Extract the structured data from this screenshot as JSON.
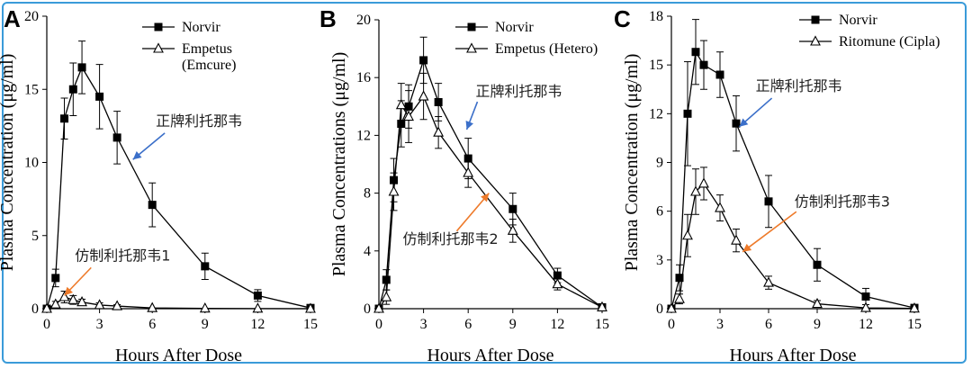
{
  "chart_data": [
    {
      "panel": "A",
      "type": "line",
      "xlabel": "Hours After Dose",
      "ylabel": "Plasma Concentration (μg/ml)",
      "xlim": [
        0,
        15
      ],
      "ylim": [
        0,
        20
      ],
      "xticks": [
        0,
        3,
        6,
        9,
        12,
        15
      ],
      "yticks": [
        0,
        5,
        10,
        15,
        20
      ],
      "legend_position": "top-right",
      "series": [
        {
          "name": "Norvir",
          "marker": "square",
          "x": [
            0,
            0.5,
            1,
            1.5,
            2,
            3,
            4,
            6,
            9,
            12,
            15
          ],
          "y": [
            0,
            2.1,
            13.0,
            15.0,
            16.5,
            14.5,
            11.7,
            7.1,
            2.9,
            0.9,
            0.05
          ],
          "err": [
            0,
            0.6,
            1.4,
            1.8,
            1.8,
            2.2,
            1.8,
            1.5,
            0.9,
            0.4,
            0
          ]
        },
        {
          "name": "Empetus\n(Emcure)",
          "marker": "triangle",
          "x": [
            0,
            0.5,
            1,
            1.5,
            2,
            3,
            4,
            6,
            9,
            12,
            15
          ],
          "y": [
            0,
            0.3,
            0.8,
            0.6,
            0.45,
            0.25,
            0.18,
            0.05,
            0.02,
            0.01,
            0
          ],
          "err": [
            0,
            0.2,
            0.4,
            0.3,
            0.2,
            0.15,
            0.1,
            0,
            0,
            0,
            0
          ]
        }
      ],
      "annotations": [
        {
          "text": "正牌利托那韦",
          "x": 6.2,
          "y": 12.5,
          "arrow_to": [
            4.9,
            10.2
          ],
          "color": "#3b6fc9"
        },
        {
          "text": "仿制利托那韦1",
          "x": 1.6,
          "y": 3.3,
          "arrow_to": [
            1.0,
            0.9
          ],
          "color": "#ee7a2a"
        }
      ]
    },
    {
      "panel": "B",
      "type": "line",
      "xlabel": "Hours After Dose",
      "ylabel": "Plasma Concentrations (μg/ml)",
      "xlim": [
        0,
        15
      ],
      "ylim": [
        0,
        20
      ],
      "xticks": [
        0,
        3,
        6,
        9,
        12,
        15
      ],
      "yticks": [
        0,
        4,
        8,
        12,
        16,
        20
      ],
      "legend_position": "top-right",
      "series": [
        {
          "name": "Norvir",
          "marker": "square",
          "x": [
            0,
            0.5,
            1,
            1.5,
            2,
            3,
            4,
            6,
            9,
            12,
            15
          ],
          "y": [
            0,
            2.0,
            8.9,
            12.8,
            14.0,
            17.2,
            14.3,
            10.4,
            6.9,
            2.3,
            0.1
          ],
          "err": [
            0,
            0.7,
            1.5,
            1.6,
            1.5,
            1.6,
            1.3,
            1.4,
            1.1,
            0.5,
            0
          ]
        },
        {
          "name": "Empetus (Hetero)",
          "marker": "triangle",
          "x": [
            0,
            0.5,
            1,
            1.5,
            2,
            3,
            4,
            6,
            9,
            12,
            15
          ],
          "y": [
            0,
            0.8,
            8.1,
            14.1,
            13.3,
            14.7,
            12.2,
            9.4,
            5.4,
            1.7,
            0.1
          ],
          "err": [
            0,
            0.5,
            1.3,
            1.5,
            1.8,
            1.6,
            1.1,
            1.0,
            0.8,
            0.4,
            0
          ]
        }
      ],
      "annotations": [
        {
          "text": "正牌利托那韦",
          "x": 6.5,
          "y": 14.7,
          "arrow_to": [
            5.9,
            12.4
          ],
          "color": "#3b6fc9"
        },
        {
          "text": "仿制利托那韦2",
          "x": 1.6,
          "y": 4.5,
          "arrow_to": [
            7.4,
            8.0
          ],
          "color": "#ee7a2a"
        }
      ]
    },
    {
      "panel": "C",
      "type": "line",
      "xlabel": "Hours After Dose",
      "ylabel": "Plasma Concentration (μg/ml)",
      "xlim": [
        0,
        15
      ],
      "ylim": [
        0,
        18
      ],
      "xticks": [
        0,
        3,
        6,
        9,
        12,
        15
      ],
      "yticks": [
        0,
        3,
        6,
        9,
        12,
        15,
        18
      ],
      "legend_position": "top-right",
      "series": [
        {
          "name": "Norvir",
          "marker": "square",
          "x": [
            0,
            0.5,
            1,
            1.5,
            2,
            3,
            4,
            6,
            9,
            12,
            15
          ],
          "y": [
            0,
            1.9,
            12.0,
            15.8,
            15.0,
            14.4,
            11.4,
            6.6,
            2.7,
            0.75,
            0.05
          ],
          "err": [
            0,
            0.8,
            3.2,
            2.0,
            1.5,
            1.4,
            1.7,
            1.6,
            1.0,
            0.5,
            0
          ]
        },
        {
          "name": "Ritomune (Cipla)",
          "marker": "triangle",
          "x": [
            0,
            0.5,
            1,
            1.5,
            2,
            3,
            4,
            6,
            9,
            12,
            15
          ],
          "y": [
            0,
            0.6,
            4.5,
            7.2,
            7.7,
            6.2,
            4.2,
            1.6,
            0.3,
            0.05,
            0.02
          ],
          "err": [
            0,
            0.3,
            1.3,
            1.4,
            1.0,
            0.8,
            0.7,
            0.4,
            0.2,
            0,
            0
          ]
        }
      ],
      "annotations": [
        {
          "text": "正牌利托那韦",
          "x": 5.2,
          "y": 13.4,
          "arrow_to": [
            4.2,
            11.2
          ],
          "color": "#3b6fc9"
        },
        {
          "text": "仿制利托那韦3",
          "x": 7.6,
          "y": 6.3,
          "arrow_to": [
            4.4,
            3.5
          ],
          "color": "#ee7a2a"
        }
      ]
    }
  ]
}
